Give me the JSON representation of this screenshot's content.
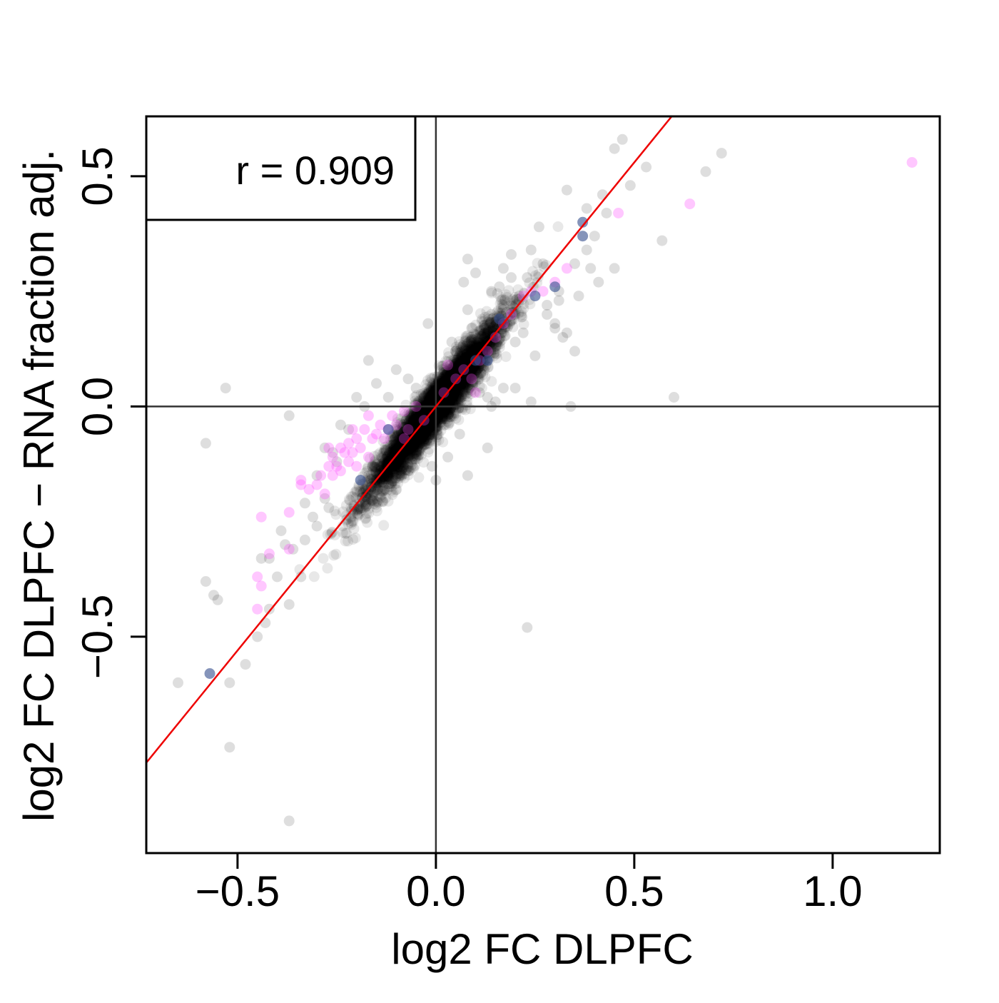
{
  "chart_data": {
    "type": "scatter",
    "title": "",
    "xlabel": "log2 FC DLPFC",
    "ylabel": "log2 FC DLPFC − RNA fraction adj.",
    "xlim": [
      -0.73,
      1.27
    ],
    "ylim": [
      -0.97,
      0.63
    ],
    "x_ticks": [
      -0.5,
      0.0,
      0.5,
      1.0
    ],
    "x_tick_labels": [
      "−0.5",
      "0.0",
      "0.5",
      "1.0"
    ],
    "y_ticks": [
      -0.5,
      0.0,
      0.5
    ],
    "y_tick_labels": [
      "−0.5",
      "0.0",
      "0.5"
    ],
    "reference_lines": {
      "vertical_x": 0,
      "horizontal_y": 0
    },
    "fit_line": {
      "slope": 1.06,
      "intercept": 0.0,
      "color": "#ee0000"
    },
    "annotation": "r = 0.909",
    "annotation_placement": "top-left",
    "grid": false,
    "colors": {
      "background_points": "#000000",
      "magenta_points": "#ff44ff",
      "blue_points": "#334d8c",
      "axis_lines": "#333333",
      "fit_line": "#ee0000"
    },
    "dense_cloud": {
      "n": 4200,
      "x_center": 0.0,
      "x_sd": 0.085,
      "slope": 1.07,
      "residual_sd": 0.028,
      "point_color": "#000000",
      "point_opacity": 0.09
    },
    "series": [
      {
        "group": "outliers-gray",
        "color": "#000000",
        "opacity": 0.13,
        "points": [
          [
            -0.65,
            -0.6
          ],
          [
            -0.52,
            -0.6
          ],
          [
            -0.58,
            -0.38
          ],
          [
            -0.56,
            -0.41
          ],
          [
            -0.53,
            0.04
          ],
          [
            -0.52,
            -0.74
          ],
          [
            -0.37,
            -0.9
          ],
          [
            -0.45,
            -0.5
          ],
          [
            -0.43,
            -0.47
          ],
          [
            -0.42,
            -0.44
          ],
          [
            -0.37,
            -0.43
          ],
          [
            -0.4,
            -0.37
          ],
          [
            -0.42,
            -0.33
          ],
          [
            -0.38,
            -0.3
          ],
          [
            -0.36,
            -0.31
          ],
          [
            -0.33,
            -0.29
          ],
          [
            -0.3,
            -0.26
          ],
          [
            -0.31,
            -0.24
          ],
          [
            -0.28,
            -0.2
          ],
          [
            -0.58,
            -0.08
          ],
          [
            -0.37,
            -0.02
          ],
          [
            -0.3,
            -0.15
          ],
          [
            -0.25,
            -0.12
          ],
          [
            -0.26,
            -0.1
          ],
          [
            -0.28,
            -0.09
          ],
          [
            -0.17,
            0.1
          ],
          [
            -0.22,
            -0.05
          ],
          [
            -0.2,
            0.02
          ],
          [
            -0.18,
            0.0
          ],
          [
            -0.12,
            0.02
          ],
          [
            -0.16,
            -0.13
          ],
          [
            -0.02,
            0.18
          ],
          [
            0.04,
            0.14
          ],
          [
            0.05,
            0.12
          ],
          [
            0.07,
            0.27
          ],
          [
            0.08,
            0.21
          ],
          [
            0.09,
            0.17
          ],
          [
            0.11,
            0.12
          ],
          [
            0.14,
            0.25
          ],
          [
            0.17,
            0.3
          ],
          [
            0.19,
            0.28
          ],
          [
            0.2,
            0.2
          ],
          [
            0.23,
            0.28
          ],
          [
            0.24,
            0.34
          ],
          [
            0.27,
            0.31
          ],
          [
            0.28,
            0.22
          ],
          [
            0.31,
            0.25
          ],
          [
            0.3,
            0.18
          ],
          [
            0.33,
            0.16
          ],
          [
            0.38,
            0.34
          ],
          [
            0.39,
            0.3
          ],
          [
            0.4,
            0.37
          ],
          [
            0.42,
            0.46
          ],
          [
            0.43,
            0.42
          ],
          [
            0.38,
            0.43
          ],
          [
            0.35,
            0.31
          ],
          [
            0.33,
            0.47
          ],
          [
            0.31,
            0.23
          ],
          [
            0.28,
            0.2
          ],
          [
            0.3,
            0.17
          ],
          [
            0.25,
            0.11
          ],
          [
            0.22,
            0.16
          ],
          [
            0.2,
            0.14
          ],
          [
            0.15,
            0.01
          ],
          [
            0.13,
            0.02
          ],
          [
            0.11,
            0.03
          ],
          [
            0.14,
            0.0
          ],
          [
            0.17,
            0.04
          ],
          [
            0.2,
            0.04
          ],
          [
            0.24,
            0.01
          ],
          [
            0.23,
            -0.48
          ],
          [
            0.34,
            0.0
          ],
          [
            0.6,
            0.02
          ],
          [
            0.68,
            0.51
          ],
          [
            0.72,
            0.55
          ],
          [
            0.53,
            0.52
          ],
          [
            0.49,
            0.48
          ],
          [
            0.47,
            0.58
          ],
          [
            0.45,
            0.56
          ],
          [
            0.57,
            0.36
          ],
          [
            0.45,
            0.3
          ],
          [
            0.41,
            0.27
          ],
          [
            0.36,
            0.24
          ],
          [
            0.35,
            0.12
          ],
          [
            0.32,
            0.15
          ],
          [
            0.08,
            -0.15
          ],
          [
            0.13,
            -0.09
          ],
          [
            0.03,
            -0.11
          ],
          [
            -0.01,
            -0.13
          ],
          [
            0.0,
            -0.16
          ],
          [
            -0.04,
            -0.08
          ],
          [
            0.06,
            -0.06
          ],
          [
            -0.07,
            0.06
          ],
          [
            -0.1,
            0.08
          ],
          [
            -0.15,
            0.05
          ],
          [
            -0.27,
            -0.22
          ],
          [
            -0.34,
            -0.37
          ],
          [
            -0.39,
            -0.27
          ],
          [
            -0.33,
            -0.21
          ],
          [
            -0.44,
            -0.33
          ],
          [
            -0.48,
            -0.56
          ],
          [
            -0.55,
            -0.42
          ],
          [
            -0.24,
            -0.04
          ],
          [
            0.26,
            0.39
          ],
          [
            0.19,
            0.33
          ],
          [
            0.08,
            0.32
          ],
          [
            0.1,
            0.29
          ],
          [
            0.16,
            0.26
          ],
          [
            0.21,
            0.24
          ],
          [
            -0.05,
            0.04
          ]
        ]
      },
      {
        "group": "highlight-magenta",
        "color": "#ff44ff",
        "opacity": 0.3,
        "points": [
          [
            -0.44,
            -0.24
          ],
          [
            -0.42,
            -0.32
          ],
          [
            -0.45,
            -0.37
          ],
          [
            -0.44,
            -0.39
          ],
          [
            -0.45,
            -0.44
          ],
          [
            -0.37,
            -0.31
          ],
          [
            -0.37,
            -0.23
          ],
          [
            -0.34,
            -0.16
          ],
          [
            -0.34,
            -0.17
          ],
          [
            -0.32,
            -0.18
          ],
          [
            -0.3,
            -0.17
          ],
          [
            -0.29,
            -0.15
          ],
          [
            -0.28,
            -0.19
          ],
          [
            -0.27,
            -0.13
          ],
          [
            -0.27,
            -0.09
          ],
          [
            -0.26,
            -0.11
          ],
          [
            -0.26,
            -0.15
          ],
          [
            -0.25,
            -0.13
          ],
          [
            -0.24,
            -0.09
          ],
          [
            -0.24,
            -0.14
          ],
          [
            -0.23,
            -0.1
          ],
          [
            -0.22,
            -0.08
          ],
          [
            -0.22,
            -0.12
          ],
          [
            -0.21,
            -0.1
          ],
          [
            -0.2,
            -0.07
          ],
          [
            -0.2,
            -0.13
          ],
          [
            -0.19,
            -0.09
          ],
          [
            -0.18,
            -0.05
          ],
          [
            -0.17,
            -0.11
          ],
          [
            -0.16,
            -0.07
          ],
          [
            -0.15,
            -0.06
          ],
          [
            -0.14,
            -0.04
          ],
          [
            -0.13,
            -0.07
          ],
          [
            -0.12,
            -0.05
          ],
          [
            -0.11,
            -0.02
          ],
          [
            -0.1,
            -0.04
          ],
          [
            -0.08,
            -0.01
          ],
          [
            -0.07,
            -0.05
          ],
          [
            -0.05,
            0.0
          ],
          [
            -0.03,
            -0.03
          ],
          [
            0.02,
            0.03
          ],
          [
            0.05,
            0.06
          ],
          [
            0.07,
            0.08
          ],
          [
            0.09,
            0.06
          ],
          [
            0.11,
            0.1
          ],
          [
            0.13,
            0.12
          ],
          [
            0.15,
            0.15
          ],
          [
            0.17,
            0.18
          ],
          [
            0.19,
            0.2
          ],
          [
            0.22,
            0.24
          ],
          [
            0.24,
            0.25
          ],
          [
            0.27,
            0.25
          ],
          [
            0.3,
            0.27
          ],
          [
            0.33,
            0.3
          ],
          [
            0.46,
            0.42
          ],
          [
            0.64,
            0.44
          ],
          [
            1.2,
            0.53
          ],
          [
            -0.17,
            -0.02
          ],
          [
            -0.21,
            -0.05
          ],
          [
            -0.08,
            -0.07
          ],
          [
            0.1,
            0.03
          ],
          [
            0.03,
            0.09
          ]
        ]
      },
      {
        "group": "highlight-blue",
        "color": "#334d8c",
        "opacity": 0.6,
        "points": [
          [
            -0.57,
            -0.58
          ],
          [
            -0.19,
            -0.16
          ],
          [
            0.13,
            0.1
          ],
          [
            0.16,
            0.19
          ],
          [
            0.3,
            0.26
          ],
          [
            0.37,
            0.37
          ],
          [
            0.37,
            0.4
          ],
          [
            0.25,
            0.24
          ],
          [
            -0.12,
            -0.05
          ],
          [
            0.1,
            0.1
          ]
        ]
      }
    ]
  }
}
